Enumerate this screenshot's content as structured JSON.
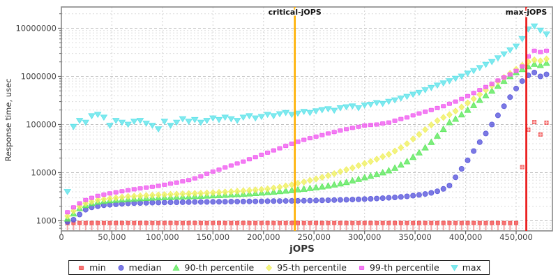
{
  "chart_data": {
    "type": "scatter",
    "title": "",
    "xlabel": "jOPS",
    "ylabel": "Response time, usec",
    "yscale": "log",
    "grid": true,
    "legend_position": "bottom",
    "xlim": [
      0,
      486000
    ],
    "ylim": [
      620,
      27000000
    ],
    "xtick_values": [
      0,
      50000,
      100000,
      150000,
      200000,
      250000,
      300000,
      350000,
      400000,
      450000
    ],
    "xtick_labels": [
      "0",
      "50,000",
      "100,000",
      "150,000",
      "200,000",
      "250,000",
      "300,000",
      "350,000",
      "400,000",
      "450,000"
    ],
    "ytick_values": [
      1000,
      10000,
      100000,
      1000000,
      10000000
    ],
    "ytick_labels": [
      "1000",
      "10000",
      "100000",
      "1000000",
      "10000000"
    ],
    "vlines": [
      {
        "label": "critical-jOPS",
        "value": 231000,
        "color": "#ffb000"
      },
      {
        "label": "max-jOPS",
        "value": 460000,
        "color": "#e91212"
      }
    ],
    "x": [
      6000,
      12000,
      18000,
      24000,
      30000,
      36000,
      42000,
      48000,
      54000,
      60000,
      66000,
      72000,
      78000,
      84000,
      90000,
      96000,
      102000,
      108000,
      114000,
      120000,
      126000,
      132000,
      138000,
      144000,
      150000,
      156000,
      162000,
      168000,
      174000,
      180000,
      186000,
      192000,
      198000,
      204000,
      210000,
      216000,
      222000,
      228000,
      234000,
      240000,
      246000,
      252000,
      258000,
      264000,
      270000,
      276000,
      282000,
      288000,
      294000,
      300000,
      306000,
      312000,
      318000,
      324000,
      330000,
      336000,
      342000,
      348000,
      354000,
      360000,
      366000,
      372000,
      378000,
      384000,
      390000,
      396000,
      402000,
      408000,
      414000,
      420000,
      426000,
      432000,
      438000,
      444000,
      450000,
      456000,
      462000,
      468000,
      474000,
      480000
    ],
    "series": [
      {
        "name": "min",
        "marker": "square-stem",
        "color": "#f25252",
        "stem_color": "#f5a8a8",
        "values": [
          900,
          900,
          900,
          900,
          900,
          900,
          900,
          900,
          900,
          900,
          900,
          900,
          900,
          900,
          900,
          900,
          900,
          900,
          900,
          900,
          900,
          900,
          900,
          900,
          900,
          900,
          900,
          900,
          900,
          900,
          900,
          900,
          900,
          900,
          900,
          900,
          900,
          900,
          900,
          900,
          900,
          900,
          900,
          900,
          900,
          900,
          900,
          900,
          900,
          900,
          900,
          900,
          900,
          900,
          900,
          900,
          900,
          900,
          900,
          900,
          900,
          900,
          900,
          900,
          900,
          900,
          900,
          900,
          900,
          900,
          900,
          900,
          900,
          900,
          900,
          13000,
          78000,
          112000,
          62000,
          109000
        ]
      },
      {
        "name": "median",
        "marker": "circle",
        "color": "#5a58dc",
        "values": [
          950,
          1050,
          1350,
          1700,
          1900,
          2000,
          2100,
          2150,
          2200,
          2250,
          2300,
          2320,
          2340,
          2360,
          2380,
          2390,
          2400,
          2410,
          2420,
          2430,
          2440,
          2450,
          2450,
          2460,
          2470,
          2480,
          2490,
          2500,
          2500,
          2510,
          2520,
          2530,
          2540,
          2550,
          2560,
          2570,
          2580,
          2590,
          2600,
          2610,
          2620,
          2640,
          2650,
          2670,
          2690,
          2710,
          2730,
          2760,
          2790,
          2820,
          2860,
          2900,
          2950,
          3000,
          3060,
          3130,
          3220,
          3320,
          3450,
          3600,
          3800,
          4100,
          4600,
          5400,
          8000,
          12000,
          18000,
          28000,
          43000,
          65000,
          100000,
          155000,
          240000,
          370000,
          560000,
          800000,
          1050000,
          1200000,
          1000000,
          1100000
        ]
      },
      {
        "name": "90-th percentile",
        "marker": "triangle-up",
        "color": "#5ce85c",
        "values": [
          1100,
          1400,
          1800,
          2100,
          2300,
          2450,
          2550,
          2650,
          2700,
          2750,
          2800,
          2850,
          2900,
          2950,
          3000,
          3030,
          3060,
          3090,
          3120,
          3150,
          3180,
          3220,
          3260,
          3300,
          3340,
          3380,
          3430,
          3480,
          3530,
          3590,
          3650,
          3720,
          3800,
          3880,
          3970,
          4070,
          4180,
          4300,
          4430,
          4570,
          4730,
          4900,
          5100,
          5300,
          5600,
          5900,
          6300,
          6800,
          7300,
          7900,
          8500,
          9200,
          10000,
          11000,
          12500,
          14500,
          17000,
          21000,
          26000,
          33000,
          43000,
          58000,
          80000,
          110000,
          130000,
          160000,
          200000,
          250000,
          320000,
          400000,
          500000,
          630000,
          800000,
          1000000,
          1200000,
          1400000,
          1600000,
          1800000,
          1700000,
          1900000
        ]
      },
      {
        "name": "95-th percentile",
        "marker": "diamond",
        "color": "#f0f060",
        "values": [
          1250,
          1600,
          2000,
          2300,
          2500,
          2700,
          2800,
          2900,
          3000,
          3100,
          3200,
          3250,
          3300,
          3350,
          3400,
          3450,
          3500,
          3540,
          3580,
          3620,
          3660,
          3700,
          3740,
          3790,
          3840,
          3900,
          3960,
          4030,
          4100,
          4180,
          4270,
          4370,
          4480,
          4600,
          4800,
          5000,
          5300,
          5600,
          6000,
          6400,
          6900,
          7400,
          8000,
          8700,
          9500,
          10500,
          11500,
          12500,
          14000,
          15500,
          17000,
          19000,
          21500,
          24000,
          28000,
          33000,
          40000,
          50000,
          62000,
          78000,
          98000,
          120000,
          140000,
          160000,
          190000,
          230000,
          280000,
          340000,
          420000,
          520000,
          640000,
          780000,
          950000,
          1150000,
          1400000,
          1700000,
          2000000,
          2200000,
          2100000,
          2300000
        ]
      },
      {
        "name": "99-th percentile",
        "marker": "square",
        "color": "#f05cf0",
        "values": [
          1500,
          1900,
          2300,
          2700,
          3000,
          3300,
          3500,
          3700,
          3900,
          4100,
          4300,
          4500,
          4700,
          4900,
          5100,
          5300,
          5600,
          5900,
          6200,
          6600,
          7000,
          7600,
          8400,
          9500,
          10500,
          11500,
          12800,
          14000,
          15500,
          17000,
          19000,
          21000,
          23500,
          26000,
          29000,
          32000,
          36000,
          40000,
          44000,
          48000,
          52000,
          56000,
          60000,
          65000,
          70000,
          75000,
          80000,
          85000,
          90000,
          95000,
          98000,
          100000,
          105000,
          110000,
          120000,
          130000,
          140000,
          155000,
          170000,
          185000,
          200000,
          220000,
          240000,
          270000,
          300000,
          340000,
          390000,
          450000,
          520000,
          600000,
          700000,
          820000,
          950000,
          1100000,
          1300000,
          1600000,
          2600000,
          3400000,
          3200000,
          3400000
        ]
      },
      {
        "name": "max",
        "marker": "triangle-down",
        "color": "#5fe3ea",
        "values": [
          4000,
          90000,
          120000,
          110000,
          150000,
          160000,
          140000,
          95000,
          120000,
          110000,
          100000,
          115000,
          120000,
          105000,
          95000,
          80000,
          115000,
          95000,
          110000,
          130000,
          115000,
          125000,
          110000,
          120000,
          135000,
          125000,
          140000,
          130000,
          120000,
          140000,
          150000,
          135000,
          145000,
          160000,
          150000,
          165000,
          175000,
          160000,
          170000,
          185000,
          175000,
          190000,
          200000,
          210000,
          195000,
          220000,
          230000,
          240000,
          220000,
          250000,
          260000,
          280000,
          270000,
          300000,
          320000,
          350000,
          380000,
          420000,
          460000,
          520000,
          580000,
          650000,
          720000,
          800000,
          900000,
          1000000,
          1150000,
          1300000,
          1500000,
          1750000,
          2000000,
          2400000,
          2900000,
          3500000,
          4200000,
          6000000,
          9500000,
          11000000,
          9000000,
          7500000
        ]
      }
    ],
    "colors": {
      "frame": "#888888",
      "grid_minor": "#dcdcdc",
      "grid_major": "#c2c2c2",
      "grid_vertical": "#d0d0d0",
      "tick": "#666666"
    }
  }
}
